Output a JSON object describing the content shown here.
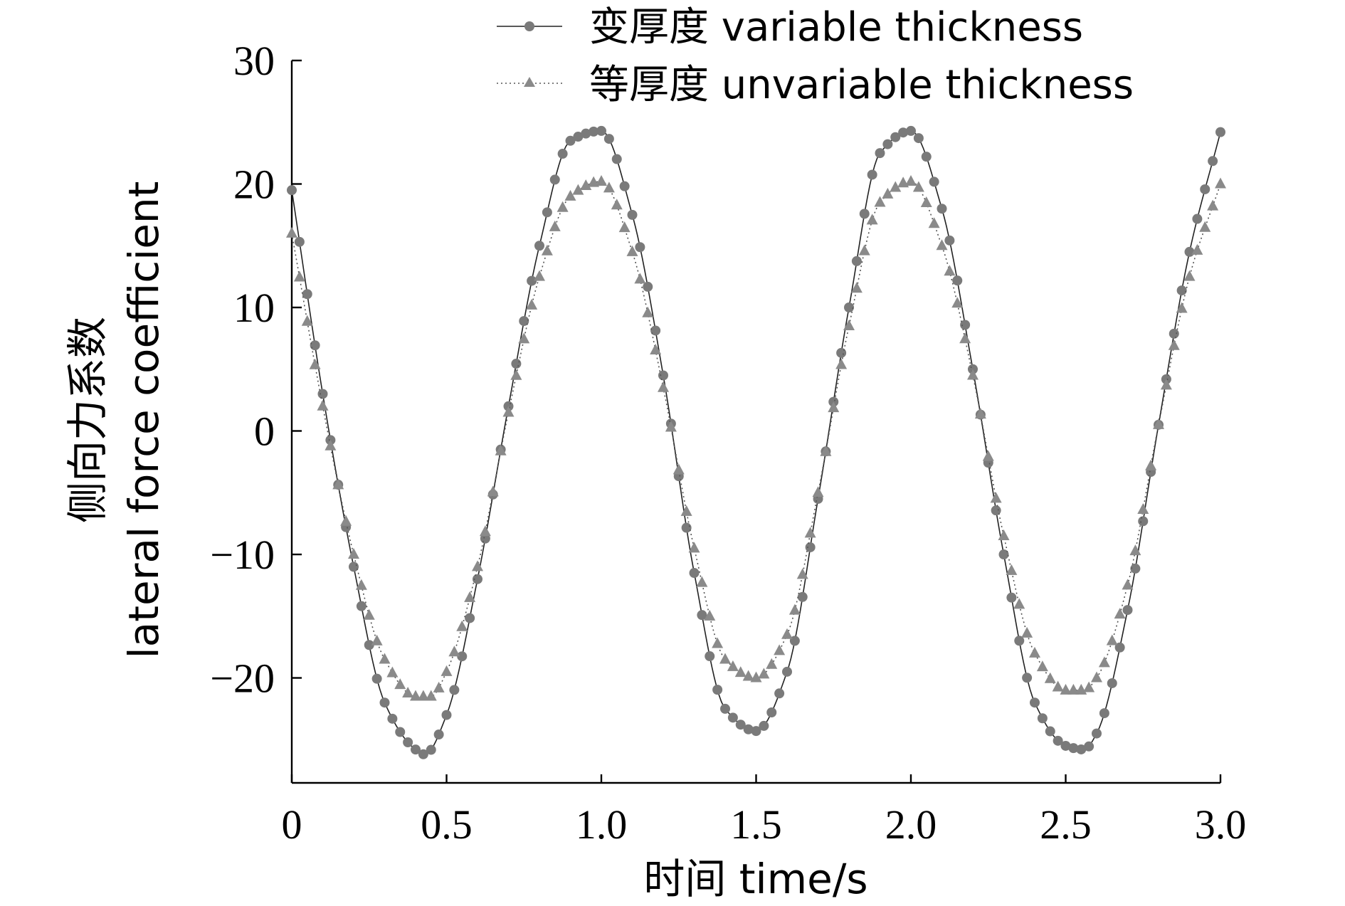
{
  "chart_data": {
    "type": "line",
    "title": "",
    "xlabel": "时间 time/s",
    "ylabel_cn": "侧向力系数",
    "ylabel_en": "lateral force coefficient",
    "xlim": [
      0,
      3.0
    ],
    "ylim": [
      -28.5,
      30
    ],
    "x_ticks": [
      0,
      0.5,
      1.0,
      1.5,
      2.0,
      2.5,
      3.0
    ],
    "x_tick_labels": [
      "0",
      "0.5",
      "1.0",
      "1.5",
      "2.0",
      "2.5",
      "3.0"
    ],
    "y_ticks": [
      -20,
      -10,
      0,
      10,
      20,
      30
    ],
    "y_tick_labels": [
      "−20",
      "−10",
      "0",
      "10",
      "20",
      "30"
    ],
    "grid": false,
    "legend_position": "top",
    "series": [
      {
        "name": "变厚度 variable thickness",
        "marker": "circle",
        "line_style": "solid",
        "color": "#7a7a7a",
        "x": [
          0,
          0.1,
          0.2,
          0.3,
          0.4,
          0.43,
          0.5,
          0.6,
          0.7,
          0.8,
          0.9,
          1.0,
          1.1,
          1.2,
          1.3,
          1.4,
          1.5,
          1.6,
          1.7,
          1.8,
          1.9,
          2.0,
          2.1,
          2.2,
          2.3,
          2.4,
          2.5,
          2.56,
          2.6,
          2.7,
          2.8,
          2.9,
          3.0
        ],
        "y": [
          19.5,
          3,
          -11,
          -22,
          -25.8,
          -26.2,
          -23,
          -12,
          2,
          15,
          23.5,
          24.3,
          17.5,
          4.5,
          -11.5,
          -22.5,
          -24.3,
          -19.5,
          -5.5,
          10,
          22.5,
          24.3,
          18,
          5,
          -10,
          -22,
          -25.5,
          -25.8,
          -24.5,
          -14.5,
          0.5,
          14.5,
          24.2
        ]
      },
      {
        "name": "等厚度 unvariable thickness",
        "marker": "triangle",
        "line_style": "dotted",
        "color": "#8a8a8a",
        "x": [
          0,
          0.1,
          0.2,
          0.3,
          0.4,
          0.45,
          0.5,
          0.6,
          0.7,
          0.8,
          0.9,
          1.0,
          1.1,
          1.2,
          1.3,
          1.4,
          1.5,
          1.6,
          1.7,
          1.8,
          1.9,
          2.0,
          2.1,
          2.2,
          2.3,
          2.4,
          2.5,
          2.56,
          2.6,
          2.7,
          2.8,
          2.9,
          3.0
        ],
        "y": [
          16,
          2,
          -10,
          -18.5,
          -21.5,
          -21.5,
          -19.5,
          -11,
          1.5,
          12.5,
          19,
          20.2,
          14.5,
          3.5,
          -9.5,
          -18.5,
          -20,
          -16.5,
          -5,
          8.5,
          18.5,
          20.2,
          15,
          4.5,
          -8.5,
          -18,
          -21,
          -21,
          -20,
          -12.5,
          0.5,
          12.5,
          20
        ]
      }
    ]
  }
}
